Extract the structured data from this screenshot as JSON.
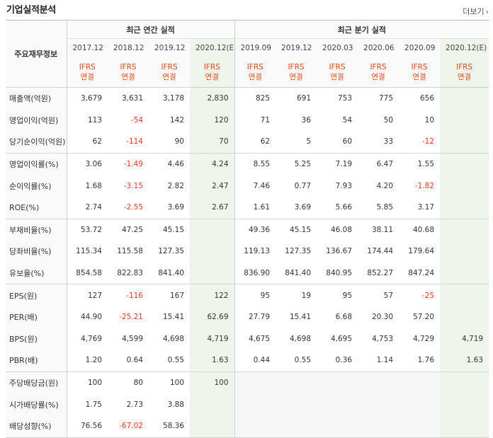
{
  "header": {
    "title": "기업실적분석",
    "more_label": "더보기"
  },
  "table": {
    "corner_label": "주요재무정보",
    "annual_title": "최근 연간 실적",
    "quarter_title": "최근 분기 실적",
    "annual_periods": [
      "2017.12",
      "2018.12",
      "2019.12",
      "2020.12(E)"
    ],
    "quarter_periods": [
      "2019.09",
      "2019.12",
      "2020.03",
      "2020.06",
      "2020.09",
      "2020.12(E)"
    ],
    "basis_line1": "IFRS",
    "basis_line2": "연결",
    "rows": [
      {
        "label": "매출액(억원)",
        "annual": [
          "3,679",
          "3,631",
          "3,178",
          "2,830"
        ],
        "quarter": [
          "825",
          "691",
          "753",
          "775",
          "656",
          ""
        ]
      },
      {
        "label": "영업이익(억원)",
        "annual": [
          "113",
          "-54",
          "142",
          "120"
        ],
        "quarter": [
          "71",
          "36",
          "54",
          "50",
          "10",
          ""
        ]
      },
      {
        "label": "당기순이익(억원)",
        "annual": [
          "62",
          "-114",
          "90",
          "70"
        ],
        "quarter": [
          "62",
          "5",
          "60",
          "33",
          "-12",
          ""
        ]
      },
      {
        "label": "영업이익률(%)",
        "annual": [
          "3.06",
          "-1.49",
          "4.46",
          "4.24"
        ],
        "quarter": [
          "8.55",
          "5.25",
          "7.19",
          "6.47",
          "1.55",
          ""
        ]
      },
      {
        "label": "순이익률(%)",
        "annual": [
          "1.68",
          "-3.15",
          "2.82",
          "2.47"
        ],
        "quarter": [
          "7.46",
          "0.77",
          "7.93",
          "4.20",
          "-1.82",
          ""
        ]
      },
      {
        "label": "ROE(%)",
        "annual": [
          "2.74",
          "-2.55",
          "3.69",
          "2.67"
        ],
        "quarter": [
          "1.61",
          "3.69",
          "5.66",
          "5.85",
          "3.17",
          ""
        ]
      },
      {
        "label": "부채비율(%)",
        "annual": [
          "53.72",
          "47.25",
          "45.15",
          ""
        ],
        "quarter": [
          "49.36",
          "45.15",
          "46.08",
          "38.11",
          "40.68",
          ""
        ]
      },
      {
        "label": "당좌비율(%)",
        "annual": [
          "115.34",
          "115.58",
          "127.35",
          ""
        ],
        "quarter": [
          "119.13",
          "127.35",
          "136.67",
          "174.44",
          "179.64",
          ""
        ]
      },
      {
        "label": "유보율(%)",
        "annual": [
          "854.58",
          "822.83",
          "841.40",
          ""
        ],
        "quarter": [
          "836.90",
          "841.40",
          "840.95",
          "852.27",
          "847.24",
          ""
        ]
      },
      {
        "label": "EPS(원)",
        "annual": [
          "127",
          "-116",
          "167",
          "122"
        ],
        "quarter": [
          "95",
          "19",
          "95",
          "57",
          "-25",
          ""
        ]
      },
      {
        "label": "PER(배)",
        "annual": [
          "44.90",
          "-25.21",
          "15.41",
          "62.69"
        ],
        "quarter": [
          "27.79",
          "15.41",
          "6.68",
          "20.30",
          "57.20",
          ""
        ]
      },
      {
        "label": "BPS(원)",
        "annual": [
          "4,769",
          "4,599",
          "4,698",
          "4,719"
        ],
        "quarter": [
          "4,675",
          "4,698",
          "4,695",
          "4,753",
          "4,729",
          "4,719"
        ]
      },
      {
        "label": "PBR(배)",
        "annual": [
          "1.20",
          "0.64",
          "0.55",
          "1.63"
        ],
        "quarter": [
          "0.44",
          "0.55",
          "0.36",
          "1.14",
          "1.76",
          "1.63"
        ]
      },
      {
        "label": "주당배당금(원)",
        "annual": [
          "100",
          "80",
          "100",
          "100"
        ],
        "quarter": [
          "",
          "",
          "",
          "",
          "",
          ""
        ]
      },
      {
        "label": "시가배당률(%)",
        "annual": [
          "1.75",
          "2.73",
          "3.88",
          ""
        ],
        "quarter": [
          "",
          "",
          "",
          "",
          "",
          ""
        ]
      },
      {
        "label": "배당성향(%)",
        "annual": [
          "76.56",
          "-67.02",
          "58.36",
          ""
        ],
        "quarter": [
          "",
          "",
          "",
          "",
          "",
          ""
        ]
      }
    ]
  },
  "colors": {
    "negative": "#e23b2e",
    "basis": "#e8491d",
    "estimate_bg": "#eef6ec"
  }
}
